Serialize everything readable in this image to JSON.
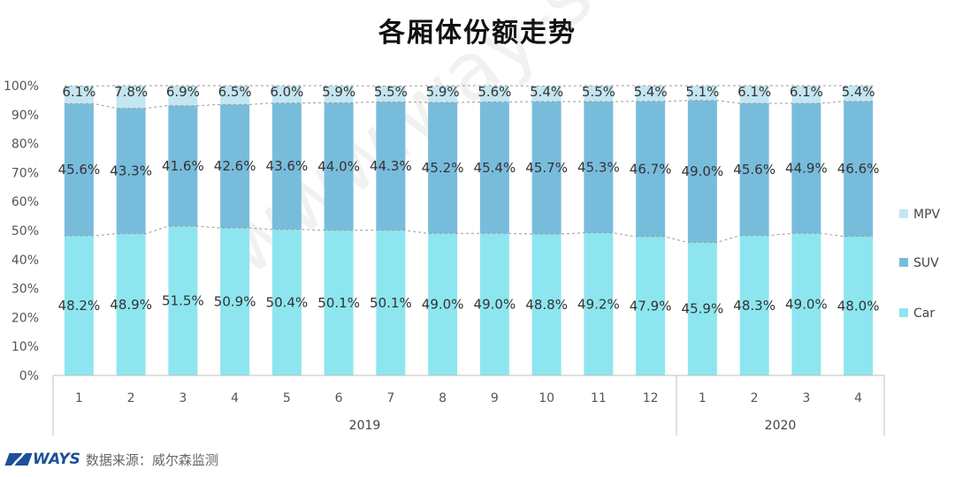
{
  "chart_data": {
    "type": "bar",
    "stacked": true,
    "percent": true,
    "title": "各厢体份额走势",
    "categories": [
      "1",
      "2",
      "3",
      "4",
      "5",
      "6",
      "7",
      "8",
      "9",
      "10",
      "11",
      "12",
      "1",
      "2",
      "3",
      "4"
    ],
    "groups": [
      {
        "label": "2019",
        "count": 12
      },
      {
        "label": "2020",
        "count": 4
      }
    ],
    "series": [
      {
        "name": "Car",
        "color": "#8de6ef",
        "values": [
          48.2,
          48.9,
          51.5,
          50.9,
          50.4,
          50.1,
          50.1,
          49.0,
          49.0,
          48.8,
          49.2,
          47.9,
          45.9,
          48.3,
          49.0,
          48.0
        ],
        "labels": [
          "48.2%",
          "48.9%",
          "51.5%",
          "50.9%",
          "50.4%",
          "50.1%",
          "50.1%",
          "49.0%",
          "49.0%",
          "48.8%",
          "49.2%",
          "47.9%",
          "45.9%",
          "48.3%",
          "49.0%",
          "48.0%"
        ]
      },
      {
        "name": "SUV",
        "color": "#78bcdc",
        "values": [
          45.6,
          43.3,
          41.6,
          42.6,
          43.6,
          44.0,
          44.3,
          45.2,
          45.4,
          45.7,
          45.3,
          46.7,
          49.0,
          45.6,
          44.9,
          46.6
        ],
        "labels": [
          "45.6%",
          "43.3%",
          "41.6%",
          "42.6%",
          "43.6%",
          "44.0%",
          "44.3%",
          "45.2%",
          "45.4%",
          "45.7%",
          "45.3%",
          "46.7%",
          "49.0%",
          "45.6%",
          "44.9%",
          "46.6%"
        ]
      },
      {
        "name": "MPV",
        "color": "#c4e6f0",
        "values": [
          6.1,
          7.8,
          6.9,
          6.5,
          6.0,
          5.9,
          5.5,
          5.9,
          5.6,
          5.4,
          5.5,
          5.4,
          5.1,
          6.1,
          6.1,
          5.4
        ],
        "labels": [
          "6.1%",
          "7.8%",
          "6.9%",
          "6.5%",
          "6.0%",
          "5.9%",
          "5.5%",
          "5.9%",
          "5.6%",
          "5.4%",
          "5.5%",
          "5.4%",
          "5.1%",
          "6.1%",
          "6.1%",
          "5.4%"
        ]
      }
    ],
    "ylim": [
      0,
      100
    ],
    "yticks": [
      "0%",
      "10%",
      "20%",
      "30%",
      "40%",
      "50%",
      "60%",
      "70%",
      "80%",
      "90%",
      "100%"
    ],
    "legend": {
      "position": "right",
      "order": [
        "MPV",
        "SUV",
        "Car"
      ]
    },
    "grid": false,
    "series_lines": "dashed"
  },
  "footer": {
    "logo_text": "WAYS",
    "source_text": "数据来源：威尔森监测"
  },
  "watermark": "www.way-s.cn"
}
